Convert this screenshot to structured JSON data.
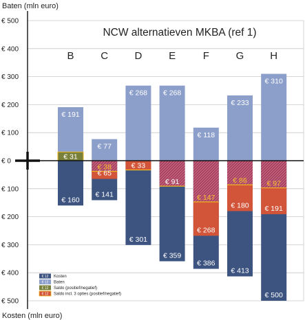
{
  "chart_data": {
    "type": "bar",
    "title": "NCW alternatieven MKBA (ref 1)",
    "ylabel_top": "Baten (mln euro)",
    "ylabel_bottom": "Kosten (mln euro)",
    "ylim": [
      -500,
      500
    ],
    "yticks": [
      {
        "value": 500,
        "label": "€ 500"
      },
      {
        "value": 400,
        "label": "€ 400"
      },
      {
        "value": 300,
        "label": "€ 300"
      },
      {
        "value": 200,
        "label": "€ 200"
      },
      {
        "value": 100,
        "label": "€ 100"
      },
      {
        "value": 0,
        "label": "€ 0"
      },
      {
        "value": -100,
        "label": "€ 100"
      },
      {
        "value": -200,
        "label": "€ 200"
      },
      {
        "value": -300,
        "label": "€ 300"
      },
      {
        "value": -400,
        "label": "€ 400"
      },
      {
        "value": -500,
        "label": "€ 500"
      }
    ],
    "grid": true,
    "categories": [
      "B",
      "C",
      "D",
      "E",
      "F",
      "G",
      "H"
    ],
    "series": [
      {
        "name": "Kosten",
        "values": [
          160,
          141,
          301,
          359,
          386,
          413,
          500
        ],
        "labels": [
          "€ 160",
          "€ 141",
          "€ 301",
          "€ 359",
          "€ 386",
          "€ 413",
          "€ 500"
        ]
      },
      {
        "name": "Baten",
        "values": [
          191,
          77,
          268,
          268,
          118,
          233,
          310
        ],
        "labels": [
          "€ 191",
          "€ 77",
          "€ 268",
          "€ 268",
          "€ 118",
          "€ 233",
          "€ 310"
        ]
      },
      {
        "name": "Saldo (positief/negatief)",
        "values": [
          31,
          -65,
          -33,
          -91,
          -268,
          -180,
          -191
        ],
        "labels": [
          "€ 31",
          "€ 65",
          "€ 33",
          "€ 91",
          "€ 268",
          "€ 180",
          "€ 191"
        ]
      },
      {
        "name": "Saldo incl. 3 opties (positief/negatief)",
        "values": [
          null,
          -38,
          null,
          null,
          -147,
          -86,
          -97
        ],
        "labels": [
          "",
          "€ 38",
          "",
          "",
          "€ 147",
          "€ 86",
          "€ 97"
        ]
      }
    ],
    "legend": {
      "placement": "bottom-left",
      "items": [
        {
          "swatch_text": "€ 12",
          "label": "Kosten"
        },
        {
          "swatch_text": "€ 12",
          "label": "Baten"
        },
        {
          "swatch_text": "€ 12",
          "label": "Saldo (positief/negatief)"
        },
        {
          "swatch_text": "€ 12",
          "label": "Saldo incl. 3 opties (positief/negatief)"
        }
      ]
    },
    "colors": {
      "kosten": "#3d5481",
      "baten": "#8c9fcb",
      "saldo_neg": "#d2553a",
      "saldo_pos": "#79803a",
      "hatch": "#b84a6a",
      "saldo_line": "#f0b81e",
      "grid": "#c8c8c8"
    }
  }
}
